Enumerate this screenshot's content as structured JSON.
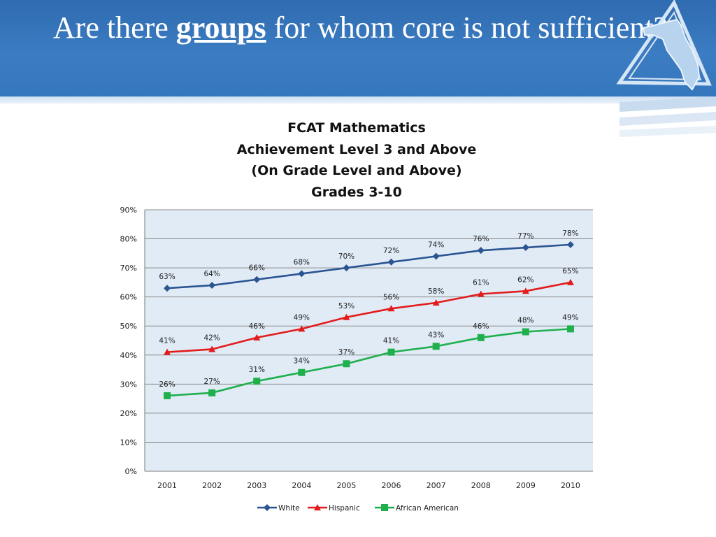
{
  "slide": {
    "title_pre": "Are there ",
    "title_em": "groups",
    "title_post": " for whom core is not sufficient?"
  },
  "colors": {
    "white_series": "#2a5592",
    "hispanic_series": "#e31b1b",
    "african_american_series": "#1fb04d",
    "plot_bg": "#e0ebf6",
    "grid": "#8a8a8a",
    "header": "#3577bd"
  },
  "icons": {
    "logo": "florida-map-triangle-icon"
  },
  "chart_data": {
    "type": "line",
    "title": [
      "FCAT Mathematics",
      "Achievement Level 3 and Above",
      "(On Grade Level and Above)",
      "Grades 3-10"
    ],
    "categories": [
      "2001",
      "2002",
      "2003",
      "2004",
      "2005",
      "2006",
      "2007",
      "2008",
      "2009",
      "2010"
    ],
    "ylim": [
      0,
      90
    ],
    "yticks": [
      "0%",
      "10%",
      "20%",
      "30%",
      "40%",
      "50%",
      "60%",
      "70%",
      "80%",
      "90%"
    ],
    "grid": true,
    "legend_position": "bottom",
    "series": [
      {
        "name": "White",
        "marker": "diamond",
        "color": "#2a5592",
        "values": [
          63,
          64,
          66,
          68,
          70,
          72,
          74,
          76,
          77,
          78
        ],
        "labels": [
          "63%",
          "64%",
          "66%",
          "68%",
          "70%",
          "72%",
          "74%",
          "76%",
          "77%",
          "78%"
        ]
      },
      {
        "name": "Hispanic",
        "marker": "triangle",
        "color": "#e31b1b",
        "values": [
          41,
          42,
          46,
          49,
          53,
          56,
          58,
          61,
          62,
          65
        ],
        "labels": [
          "41%",
          "42%",
          "46%",
          "49%",
          "53%",
          "56%",
          "58%",
          "61%",
          "62%",
          "65%"
        ]
      },
      {
        "name": "African American",
        "marker": "square",
        "color": "#1fb04d",
        "values": [
          26,
          27,
          31,
          34,
          37,
          41,
          43,
          46,
          48,
          49
        ],
        "labels": [
          "26%",
          "27%",
          "31%",
          "34%",
          "37%",
          "41%",
          "43%",
          "46%",
          "48%",
          "49%"
        ]
      }
    ]
  }
}
